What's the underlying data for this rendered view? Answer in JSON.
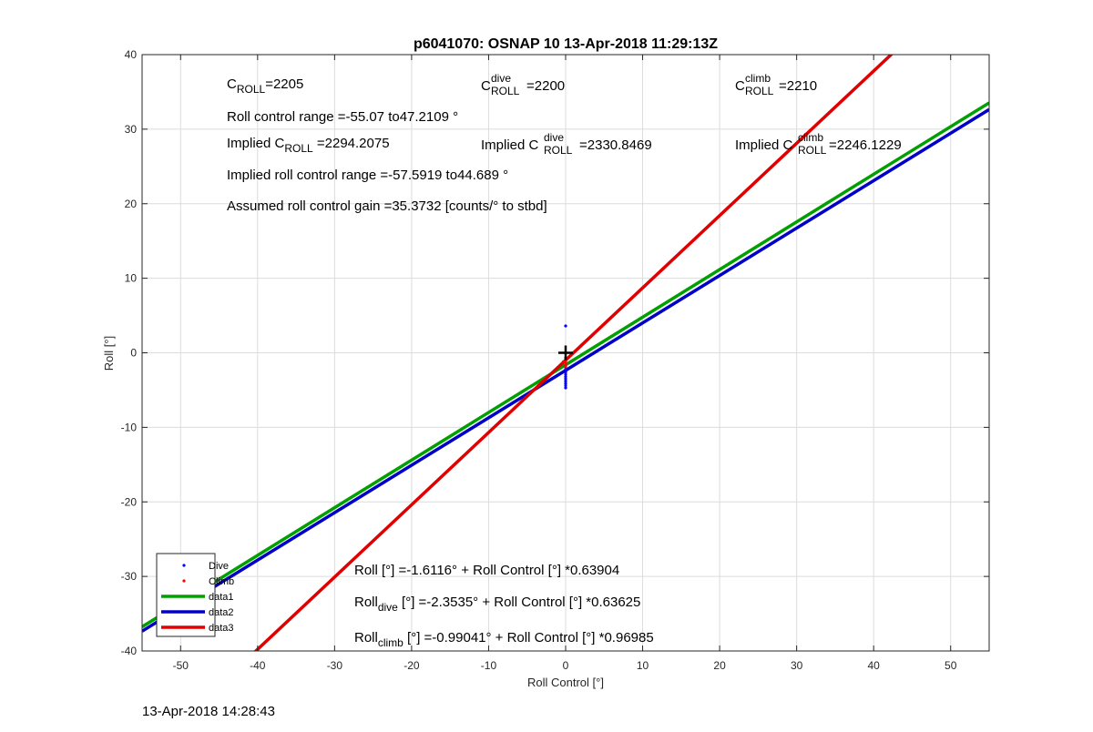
{
  "chart_data": {
    "type": "line",
    "title": "p6041070: OSNAP 10 13-Apr-2018 11:29:13Z",
    "xlabel": "Roll Control [°]",
    "ylabel": "Roll [°]",
    "xlim": [
      -55,
      55
    ],
    "ylim": [
      -40,
      40
    ],
    "xticks": [
      -50,
      -40,
      -30,
      -20,
      -10,
      0,
      10,
      20,
      30,
      40,
      50
    ],
    "yticks": [
      -40,
      -30,
      -20,
      -10,
      0,
      10,
      20,
      30,
      40
    ],
    "grid": true,
    "legend_position": "bottom-left",
    "series": [
      {
        "name": "Dive",
        "kind": "points",
        "color": "#0000ff",
        "points": [
          [
            0,
            3.6
          ],
          [
            0,
            -2.2
          ],
          [
            0,
            -2.6
          ],
          [
            0,
            -2.9
          ],
          [
            0,
            -3.2
          ],
          [
            0,
            -3.5
          ],
          [
            0,
            -3.8
          ],
          [
            0,
            -4.1
          ],
          [
            0,
            -4.4
          ],
          [
            0,
            -4.7
          ],
          [
            0,
            -1.7
          ]
        ]
      },
      {
        "name": "Climb",
        "kind": "points",
        "color": "#ff0000",
        "points": [
          [
            0,
            -0.7
          ],
          [
            0,
            -1.0
          ],
          [
            0,
            -1.3
          ],
          [
            0,
            -1.6
          ],
          [
            0,
            -1.9
          ],
          [
            -0.3,
            -1.2
          ]
        ]
      },
      {
        "name": "data1",
        "kind": "line",
        "color": "#00a000",
        "intercept": -1.6116,
        "slope": 0.63904
      },
      {
        "name": "data2",
        "kind": "line",
        "color": "#0000c8",
        "intercept": -2.3535,
        "slope": 0.63625
      },
      {
        "name": "data3",
        "kind": "line",
        "color": "#e00000",
        "intercept": -0.99041,
        "slope": 0.96985
      }
    ],
    "marker": {
      "symbol": "+",
      "x": 0,
      "y": 0
    },
    "annotations": {
      "c_roll": {
        "c": "C",
        "sub": "ROLL",
        "value": "=2205"
      },
      "c_roll_dive": {
        "c": "C",
        "sup": "dive",
        "sub": "ROLL",
        "value": " =2200"
      },
      "c_roll_climb": {
        "c": "C",
        "sup": "climb",
        "sub": "ROLL",
        "value": " =2210"
      },
      "roll_range": "Roll control range =-55.07 to47.2109 °",
      "implied_c_roll": {
        "pre": "Implied C",
        "sub": "ROLL",
        "value": " =2294.2075"
      },
      "implied_c_roll_dive": {
        "pre": "Implied C",
        "sup": "dive",
        "sub": "ROLL",
        "value": " =2330.8469"
      },
      "implied_c_roll_climb": {
        "pre": "Implied C",
        "sup": "climb",
        "sub": "ROLL",
        "value": " =2246.1229"
      },
      "implied_range": "Implied roll control range =-57.5919 to44.689 °",
      "gain": "Assumed roll control gain =35.3732 [counts/° to stbd]",
      "fit_all": "Roll [°] =-1.6116° + Roll Control [°] *0.63904",
      "fit_dive": {
        "pre": "Roll",
        "sub": "dive",
        "rest": " [°] =-2.3535° + Roll Control [°] *0.63625"
      },
      "fit_climb": {
        "pre": "Roll",
        "sub": "climb",
        "rest": " [°] =-0.99041° + Roll Control [°] *0.96985"
      }
    }
  },
  "footer": {
    "timestamp": "13-Apr-2018 14:28:43"
  }
}
